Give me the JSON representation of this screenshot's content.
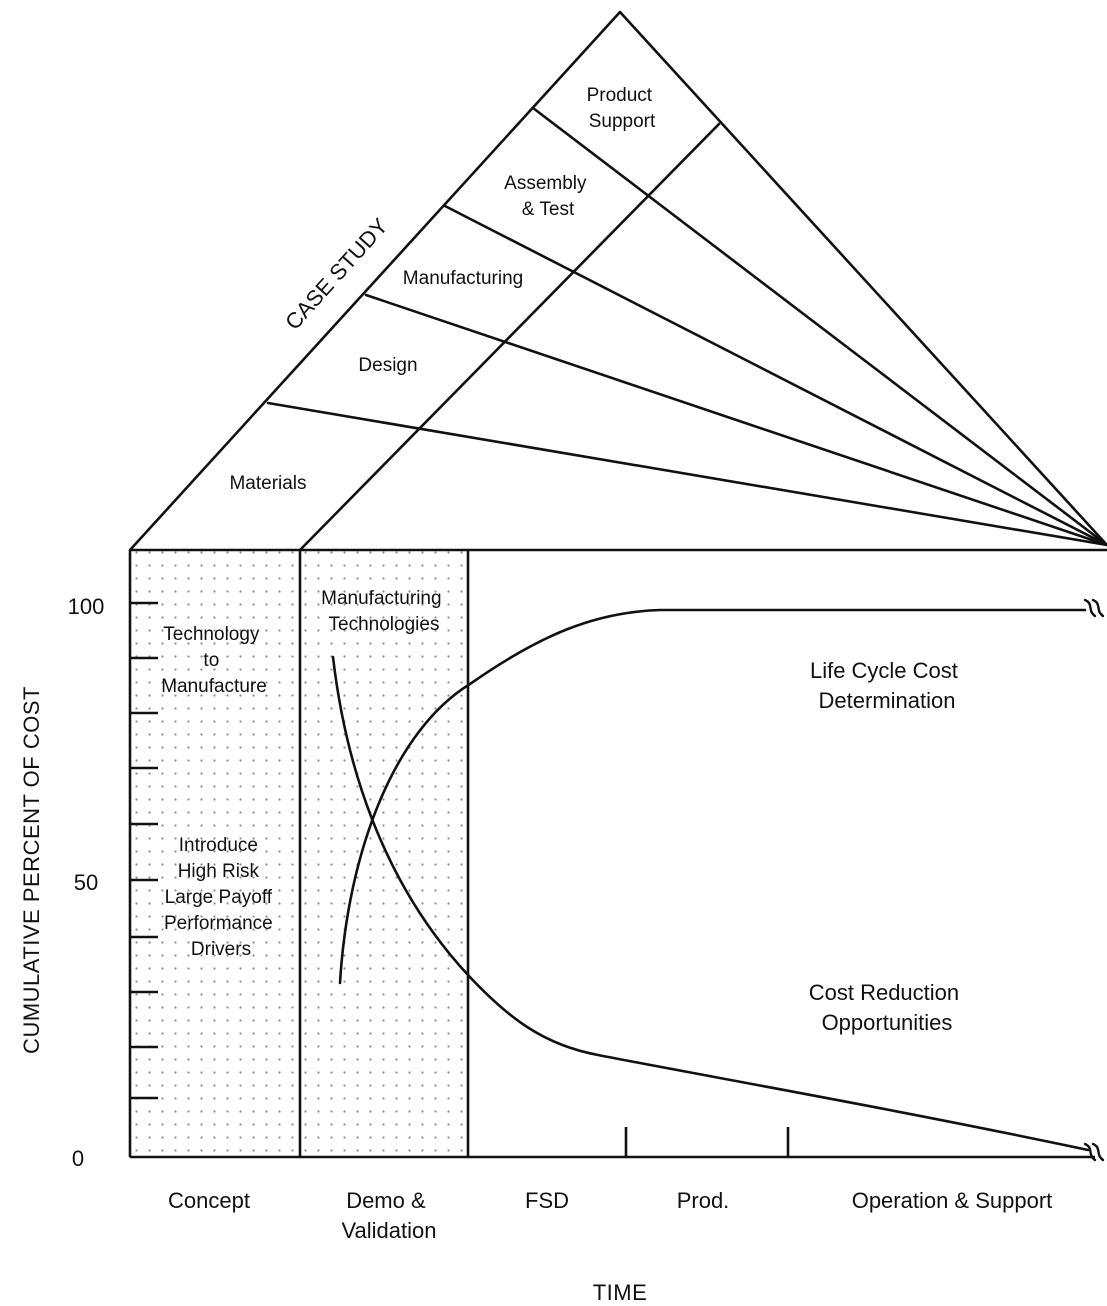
{
  "case_study": {
    "label": "CASE STUDY",
    "bands": [
      {
        "id": "materials",
        "lines": [
          "Materials"
        ]
      },
      {
        "id": "design",
        "lines": [
          "Design"
        ]
      },
      {
        "id": "manufacturing",
        "lines": [
          "Manufacturing"
        ]
      },
      {
        "id": "assembly-test",
        "lines": [
          "Assembly",
          "& Test"
        ]
      },
      {
        "id": "product-support",
        "lines": [
          "Product",
          "Support"
        ]
      }
    ]
  },
  "zones": {
    "concept_note_top": [
      "Technology",
      "to",
      "Manufacture"
    ],
    "concept_note_bottom": [
      "Introduce",
      "High Risk",
      "Large Payoff",
      "Performance",
      "Drivers"
    ],
    "demo_note": [
      "Manufacturing",
      "Technologies"
    ]
  },
  "curves": {
    "lcc_label": [
      "Life Cycle Cost",
      "Determination"
    ],
    "reduction_label": [
      "Cost Reduction",
      "Opportunities"
    ]
  },
  "axes": {
    "ylabel": "CUMULATIVE PERCENT OF COST",
    "xlabel": "TIME",
    "y_ticks": [
      "100",
      "50",
      "0"
    ],
    "phases": [
      {
        "id": "concept",
        "lines": [
          "Concept"
        ]
      },
      {
        "id": "demo-validation",
        "lines": [
          "Demo &",
          "Validation"
        ]
      },
      {
        "id": "fsd",
        "lines": [
          "FSD"
        ]
      },
      {
        "id": "prod",
        "lines": [
          "Prod."
        ]
      },
      {
        "id": "operation-support",
        "lines": [
          "Operation & Support"
        ]
      }
    ]
  },
  "colors": {
    "ink": "#111111",
    "dot": "#8a8a8a",
    "background": "#ffffff"
  }
}
